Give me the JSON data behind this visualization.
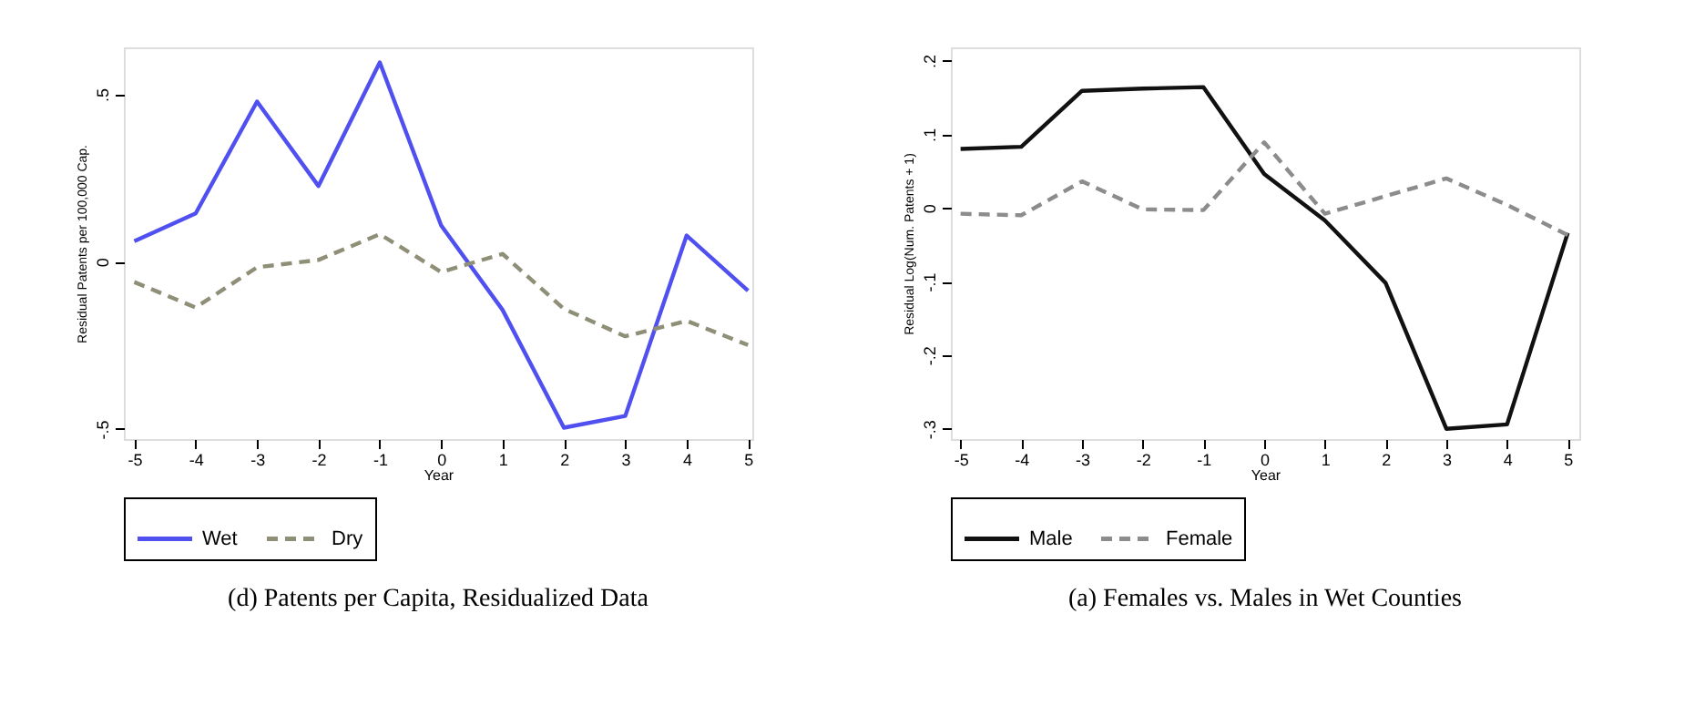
{
  "chart_data": [
    {
      "type": "line",
      "title": "(d) Patents per Capita, Residualized Data",
      "xlabel": "Year",
      "ylabel": "Residual Patents per 100,000 Cap.",
      "x": [
        -5,
        -4,
        -3,
        -2,
        -1,
        0,
        1,
        2,
        3,
        4,
        5
      ],
      "series": [
        {
          "name": "Wet",
          "color": "#5050f0",
          "line_style": "solid",
          "values": [
            0.061,
            0.144,
            0.478,
            0.226,
            0.595,
            0.108,
            -0.144,
            -0.496,
            -0.461,
            0.078,
            -0.087
          ]
        },
        {
          "name": "Dry",
          "color": "#8f8f78",
          "line_style": "dashed",
          "values": [
            -0.061,
            -0.137,
            -0.017,
            0.005,
            0.082,
            -0.031,
            0.023,
            -0.141,
            -0.223,
            -0.177,
            -0.249
          ]
        }
      ],
      "xlim": [
        -5.17,
        5.07
      ],
      "xticks": [
        -5,
        -4,
        -3,
        -2,
        -1,
        0,
        1,
        2,
        3,
        4,
        5
      ],
      "ylim": [
        -0.53,
        0.64
      ],
      "yticks": [
        {
          "value": -0.5,
          "label": "-.5"
        },
        0,
        {
          "value": 0.5,
          "label": ".5"
        }
      ],
      "grid": false,
      "legend": "bottom",
      "marker": "none"
    },
    {
      "type": "line",
      "title": "(a) Females vs. Males in Wet Counties",
      "xlabel": "Year",
      "ylabel": "Residual Log(Num. Patents + 1)",
      "x": [
        -5,
        -4,
        -3,
        -2,
        -1,
        0,
        1,
        2,
        3,
        4,
        5
      ],
      "series": [
        {
          "name": "Male",
          "color": "#111111",
          "line_style": "solid",
          "values": [
            0.08,
            0.083,
            0.159,
            0.162,
            0.164,
            0.046,
            -0.017,
            -0.102,
            -0.3,
            -0.294,
            -0.034
          ]
        },
        {
          "name": "Female",
          "color": "#8c8c8c",
          "line_style": "dashed",
          "values": [
            -0.008,
            -0.01,
            0.036,
            -0.002,
            -0.003,
            0.089,
            -0.008,
            0.016,
            0.04,
            0.004,
            -0.037
          ]
        }
      ],
      "xlim": [
        -5.16,
        5.19
      ],
      "xticks": [
        -5,
        -4,
        -3,
        -2,
        -1,
        0,
        1,
        2,
        3,
        4,
        5
      ],
      "ylim": [
        -0.314,
        0.218
      ],
      "yticks": [
        {
          "value": -0.3,
          "label": "-.3"
        },
        {
          "value": -0.2,
          "label": "-.2"
        },
        {
          "value": -0.1,
          "label": "-.1"
        },
        0,
        {
          "value": 0.1,
          "label": ".1"
        },
        {
          "value": 0.2,
          "label": ".2"
        }
      ],
      "grid": false,
      "legend": "bottom",
      "marker": "none"
    }
  ]
}
